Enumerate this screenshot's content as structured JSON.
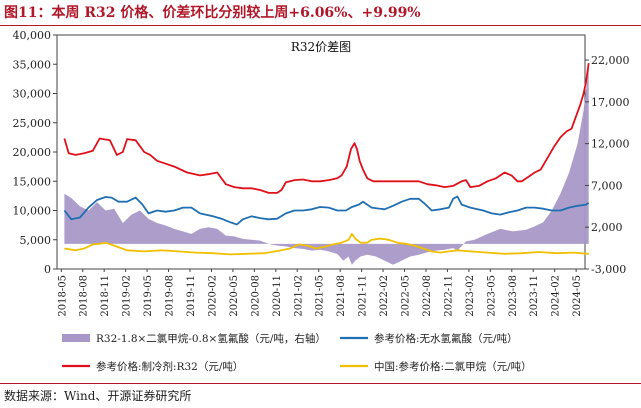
{
  "figure": {
    "label": "图11：本周 R32 价格、价差环比分别较上周+6.06%、+9.99%",
    "source": "数据来源：Wind、开源证券研究所"
  },
  "chart_data": {
    "type": "line",
    "title": "R32价差图",
    "left_axis": {
      "min": 0,
      "max": 40000,
      "ticks": [
        "0",
        "5,000",
        "10,000",
        "15,000",
        "20,000",
        "25,000",
        "30,000",
        "35,000",
        "40,000"
      ],
      "tick_values": [
        0,
        5000,
        10000,
        15000,
        20000,
        25000,
        30000,
        35000,
        40000
      ]
    },
    "right_axis": {
      "min": -3000,
      "max": 25000,
      "ticks": [
        "-3,000",
        "2,000",
        "7,000",
        "12,000",
        "17,000",
        "22,000"
      ],
      "tick_values": [
        -3000,
        2000,
        7000,
        12000,
        17000,
        22000
      ]
    },
    "x_domain": [
      "2018-05",
      "2024-06"
    ],
    "x_ticks": [
      "2018-05",
      "2018-08",
      "2018-11",
      "2019-02",
      "2019-05",
      "2019-08",
      "2019-11",
      "2020-02",
      "2020-05",
      "2020-08",
      "2020-11",
      "2021-02",
      "2021-05",
      "2021-08",
      "2021-11",
      "2022-02",
      "2022-05",
      "2022-08",
      "2022-11",
      "2023-02",
      "2023-05",
      "2023-08",
      "2023-11",
      "2024-02",
      "2024-05"
    ],
    "legend": [
      {
        "name": "R32-1.8×二氯甲烷-0.8×氢氟酸（元/吨，右轴）",
        "color": "#a898c8",
        "kind": "area"
      },
      {
        "name": "参考价格:无水氢氟酸（元/吨）",
        "color": "#1f6fb2",
        "kind": "line"
      },
      {
        "name": "参考价格:制冷剂:R32（元/吨）",
        "color": "#e0101b",
        "kind": "line"
      },
      {
        "name": "中国:参考价格:二氯甲烷（元/吨）",
        "color": "#f0c000",
        "kind": "line"
      }
    ],
    "series": [
      {
        "name": "参考价格:制冷剂:R32（元/吨）",
        "axis": "left",
        "points": [
          [
            2018.37,
            22300
          ],
          [
            2018.42,
            19800
          ],
          [
            2018.5,
            19500
          ],
          [
            2018.6,
            19800
          ],
          [
            2018.7,
            20200
          ],
          [
            2018.78,
            22300
          ],
          [
            2018.9,
            22000
          ],
          [
            2018.98,
            19500
          ],
          [
            2019.05,
            20000
          ],
          [
            2019.1,
            22200
          ],
          [
            2019.2,
            22000
          ],
          [
            2019.3,
            20000
          ],
          [
            2019.37,
            19500
          ],
          [
            2019.45,
            18500
          ],
          [
            2019.55,
            18000
          ],
          [
            2019.65,
            17500
          ],
          [
            2019.8,
            16500
          ],
          [
            2019.95,
            16000
          ],
          [
            2020.05,
            16200
          ],
          [
            2020.15,
            16500
          ],
          [
            2020.25,
            14500
          ],
          [
            2020.35,
            14000
          ],
          [
            2020.45,
            13800
          ],
          [
            2020.55,
            13800
          ],
          [
            2020.65,
            13500
          ],
          [
            2020.75,
            13000
          ],
          [
            2020.85,
            13000
          ],
          [
            2020.9,
            13500
          ],
          [
            2020.95,
            14800
          ],
          [
            2021.05,
            15200
          ],
          [
            2021.15,
            15300
          ],
          [
            2021.25,
            15000
          ],
          [
            2021.35,
            15000
          ],
          [
            2021.45,
            15200
          ],
          [
            2021.55,
            15500
          ],
          [
            2021.6,
            16000
          ],
          [
            2021.66,
            17500
          ],
          [
            2021.71,
            20500
          ],
          [
            2021.75,
            21500
          ],
          [
            2021.78,
            20500
          ],
          [
            2021.81,
            18500
          ],
          [
            2021.85,
            17000
          ],
          [
            2021.9,
            15500
          ],
          [
            2021.97,
            15000
          ],
          [
            2022.1,
            15000
          ],
          [
            2022.25,
            15000
          ],
          [
            2022.4,
            15000
          ],
          [
            2022.5,
            15000
          ],
          [
            2022.6,
            14500
          ],
          [
            2022.7,
            14300
          ],
          [
            2022.8,
            14000
          ],
          [
            2022.9,
            14200
          ],
          [
            2023.0,
            15000
          ],
          [
            2023.05,
            15200
          ],
          [
            2023.1,
            14000
          ],
          [
            2023.2,
            14200
          ],
          [
            2023.3,
            15000
          ],
          [
            2023.4,
            15500
          ],
          [
            2023.5,
            16500
          ],
          [
            2023.58,
            16000
          ],
          [
            2023.65,
            15000
          ],
          [
            2023.7,
            15000
          ],
          [
            2023.78,
            15800
          ],
          [
            2023.85,
            16500
          ],
          [
            2023.92,
            17000
          ],
          [
            2024.0,
            19000
          ],
          [
            2024.08,
            21000
          ],
          [
            2024.15,
            22500
          ],
          [
            2024.22,
            23500
          ],
          [
            2024.28,
            24000
          ],
          [
            2024.33,
            26000
          ],
          [
            2024.38,
            28000
          ],
          [
            2024.42,
            30000
          ],
          [
            2024.45,
            32000
          ],
          [
            2024.48,
            35200
          ]
        ]
      },
      {
        "name": "参考价格:无水氢氟酸（元/吨）",
        "axis": "left",
        "points": [
          [
            2018.37,
            10000
          ],
          [
            2018.45,
            8500
          ],
          [
            2018.55,
            8800
          ],
          [
            2018.65,
            10500
          ],
          [
            2018.75,
            11800
          ],
          [
            2018.85,
            12300
          ],
          [
            2018.92,
            12200
          ],
          [
            2019.0,
            11500
          ],
          [
            2019.1,
            11500
          ],
          [
            2019.2,
            12200
          ],
          [
            2019.28,
            11000
          ],
          [
            2019.35,
            9500
          ],
          [
            2019.45,
            10000
          ],
          [
            2019.55,
            9800
          ],
          [
            2019.65,
            10000
          ],
          [
            2019.75,
            10500
          ],
          [
            2019.85,
            10500
          ],
          [
            2019.95,
            9500
          ],
          [
            2020.1,
            9000
          ],
          [
            2020.2,
            8600
          ],
          [
            2020.3,
            8000
          ],
          [
            2020.38,
            7600
          ],
          [
            2020.45,
            8500
          ],
          [
            2020.55,
            9000
          ],
          [
            2020.65,
            8700
          ],
          [
            2020.75,
            8500
          ],
          [
            2020.85,
            8600
          ],
          [
            2020.95,
            9500
          ],
          [
            2021.05,
            10000
          ],
          [
            2021.15,
            10000
          ],
          [
            2021.25,
            10200
          ],
          [
            2021.35,
            10600
          ],
          [
            2021.45,
            10500
          ],
          [
            2021.55,
            10000
          ],
          [
            2021.65,
            10000
          ],
          [
            2021.72,
            10600
          ],
          [
            2021.8,
            11000
          ],
          [
            2021.85,
            11500
          ],
          [
            2021.95,
            10500
          ],
          [
            2022.1,
            10200
          ],
          [
            2022.2,
            10800
          ],
          [
            2022.3,
            11500
          ],
          [
            2022.4,
            12000
          ],
          [
            2022.5,
            12000
          ],
          [
            2022.58,
            11000
          ],
          [
            2022.65,
            10000
          ],
          [
            2022.75,
            10200
          ],
          [
            2022.85,
            10500
          ],
          [
            2022.9,
            12000
          ],
          [
            2022.95,
            12400
          ],
          [
            2023.0,
            11000
          ],
          [
            2023.1,
            10500
          ],
          [
            2023.25,
            10000
          ],
          [
            2023.35,
            9500
          ],
          [
            2023.45,
            9300
          ],
          [
            2023.55,
            9700
          ],
          [
            2023.65,
            10000
          ],
          [
            2023.75,
            10500
          ],
          [
            2023.85,
            10500
          ],
          [
            2023.95,
            10300
          ],
          [
            2024.05,
            10000
          ],
          [
            2024.15,
            10000
          ],
          [
            2024.25,
            10500
          ],
          [
            2024.35,
            10800
          ],
          [
            2024.45,
            11000
          ],
          [
            2024.48,
            11300
          ]
        ]
      },
      {
        "name": "中国:参考价格:二氯甲烷（元/吨）",
        "axis": "left",
        "points": [
          [
            2018.37,
            3500
          ],
          [
            2018.5,
            3200
          ],
          [
            2018.6,
            3500
          ],
          [
            2018.7,
            4200
          ],
          [
            2018.78,
            4300
          ],
          [
            2018.85,
            4500
          ],
          [
            2018.95,
            4000
          ],
          [
            2019.1,
            3200
          ],
          [
            2019.3,
            3000
          ],
          [
            2019.5,
            3200
          ],
          [
            2019.7,
            3000
          ],
          [
            2019.9,
            2800
          ],
          [
            2020.1,
            2700
          ],
          [
            2020.3,
            2500
          ],
          [
            2020.5,
            2600
          ],
          [
            2020.7,
            2700
          ],
          [
            2020.9,
            3200
          ],
          [
            2021.0,
            3500
          ],
          [
            2021.1,
            4200
          ],
          [
            2021.2,
            4000
          ],
          [
            2021.3,
            3500
          ],
          [
            2021.4,
            3800
          ],
          [
            2021.5,
            4200
          ],
          [
            2021.6,
            4500
          ],
          [
            2021.68,
            5000
          ],
          [
            2021.72,
            6000
          ],
          [
            2021.76,
            5200
          ],
          [
            2021.82,
            4500
          ],
          [
            2021.9,
            4500
          ],
          [
            2021.95,
            5000
          ],
          [
            2022.05,
            5200
          ],
          [
            2022.15,
            5000
          ],
          [
            2022.25,
            4500
          ],
          [
            2022.35,
            4300
          ],
          [
            2022.45,
            4000
          ],
          [
            2022.55,
            3500
          ],
          [
            2022.65,
            3000
          ],
          [
            2022.75,
            2800
          ],
          [
            2022.85,
            3000
          ],
          [
            2022.95,
            3200
          ],
          [
            2023.1,
            3000
          ],
          [
            2023.3,
            2800
          ],
          [
            2023.5,
            2600
          ],
          [
            2023.7,
            2700
          ],
          [
            2023.9,
            2900
          ],
          [
            2024.1,
            2700
          ],
          [
            2024.3,
            2800
          ],
          [
            2024.48,
            2600
          ]
        ]
      },
      {
        "name": "R32-1.8×二氯甲烷-0.8×氢氟酸（元/吨，右轴）",
        "axis": "right",
        "points": [
          [
            2018.37,
            6000
          ],
          [
            2018.45,
            5500
          ],
          [
            2018.55,
            4500
          ],
          [
            2018.65,
            4000
          ],
          [
            2018.75,
            5000
          ],
          [
            2018.85,
            4000
          ],
          [
            2018.95,
            4200
          ],
          [
            2019.05,
            2500
          ],
          [
            2019.15,
            3500
          ],
          [
            2019.25,
            4000
          ],
          [
            2019.35,
            3000
          ],
          [
            2019.45,
            2500
          ],
          [
            2019.55,
            2200
          ],
          [
            2019.65,
            1800
          ],
          [
            2019.75,
            1500
          ],
          [
            2019.85,
            1200
          ],
          [
            2019.95,
            1800
          ],
          [
            2020.05,
            2000
          ],
          [
            2020.15,
            1800
          ],
          [
            2020.25,
            1000
          ],
          [
            2020.35,
            900
          ],
          [
            2020.45,
            600
          ],
          [
            2020.55,
            500
          ],
          [
            2020.65,
            400
          ],
          [
            2020.75,
            0
          ],
          [
            2020.85,
            -200
          ],
          [
            2020.95,
            -300
          ],
          [
            2021.05,
            -500
          ],
          [
            2021.15,
            -600
          ],
          [
            2021.25,
            -800
          ],
          [
            2021.35,
            -700
          ],
          [
            2021.45,
            -900
          ],
          [
            2021.55,
            -1200
          ],
          [
            2021.62,
            -2000
          ],
          [
            2021.68,
            -1500
          ],
          [
            2021.72,
            -2500
          ],
          [
            2021.76,
            -2000
          ],
          [
            2021.82,
            -1500
          ],
          [
            2021.9,
            -1300
          ],
          [
            2022.0,
            -1500
          ],
          [
            2022.1,
            -2000
          ],
          [
            2022.2,
            -2500
          ],
          [
            2022.3,
            -2000
          ],
          [
            2022.4,
            -1500
          ],
          [
            2022.5,
            -1300
          ],
          [
            2022.6,
            -1000
          ],
          [
            2022.7,
            -800
          ],
          [
            2022.8,
            -700
          ],
          [
            2022.9,
            -500
          ],
          [
            2022.95,
            -800
          ],
          [
            2023.05,
            300
          ],
          [
            2023.15,
            500
          ],
          [
            2023.3,
            1200
          ],
          [
            2023.45,
            1800
          ],
          [
            2023.6,
            1500
          ],
          [
            2023.75,
            1700
          ],
          [
            2023.85,
            2100
          ],
          [
            2023.95,
            2600
          ],
          [
            2024.05,
            4000
          ],
          [
            2024.15,
            6000
          ],
          [
            2024.25,
            8500
          ],
          [
            2024.35,
            12000
          ],
          [
            2024.42,
            16000
          ],
          [
            2024.48,
            21000
          ]
        ]
      }
    ]
  }
}
